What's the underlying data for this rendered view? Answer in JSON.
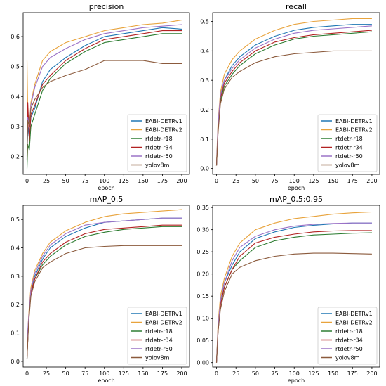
{
  "colors": {
    "EABI-DETRv1": "#1f77b4",
    "EABI-DETRv2": "#e8a33c",
    "rtdetr-r18": "#2e7d32",
    "rtdetr-r34": "#b22222",
    "rtdetr-r50": "#9b72c7",
    "yolov8m": "#8b5a3c"
  },
  "chart_data": [
    {
      "type": "line",
      "title": "precision",
      "xlabel": "epoch",
      "ylabel": "",
      "xlim": [
        -5,
        210
      ],
      "ylim": [
        0.14,
        0.68
      ],
      "xticks": [
        "0",
        "25",
        "50",
        "75",
        "100",
        "125",
        "150",
        "175",
        "200"
      ],
      "yticks": [
        "0.2",
        "0.3",
        "0.4",
        "0.5",
        "0.6"
      ],
      "legend_position": "lower-right",
      "grid": false,
      "series": [
        {
          "name": "EABI-DETRv1",
          "x": [
            0,
            1,
            3,
            5,
            10,
            20,
            30,
            50,
            75,
            100,
            125,
            150,
            175,
            200
          ],
          "y": [
            0.19,
            0.3,
            0.26,
            0.33,
            0.36,
            0.45,
            0.49,
            0.53,
            0.57,
            0.6,
            0.61,
            0.62,
            0.63,
            0.625
          ]
        },
        {
          "name": "EABI-DETRv2",
          "x": [
            0,
            1,
            3,
            5,
            10,
            20,
            30,
            50,
            75,
            100,
            125,
            150,
            175,
            200
          ],
          "y": [
            0.52,
            0.35,
            0.3,
            0.38,
            0.44,
            0.52,
            0.55,
            0.58,
            0.6,
            0.62,
            0.63,
            0.64,
            0.645,
            0.655
          ]
        },
        {
          "name": "rtdetr-r18",
          "x": [
            0,
            1,
            3,
            5,
            10,
            20,
            30,
            50,
            75,
            100,
            125,
            150,
            175,
            200
          ],
          "y": [
            0.16,
            0.24,
            0.22,
            0.3,
            0.34,
            0.42,
            0.46,
            0.51,
            0.55,
            0.58,
            0.59,
            0.6,
            0.61,
            0.61
          ]
        },
        {
          "name": "rtdetr-r34",
          "x": [
            0,
            1,
            3,
            5,
            10,
            20,
            30,
            50,
            75,
            100,
            125,
            150,
            175,
            200
          ],
          "y": [
            0.19,
            0.38,
            0.25,
            0.34,
            0.37,
            0.44,
            0.47,
            0.52,
            0.56,
            0.59,
            0.6,
            0.61,
            0.62,
            0.62
          ]
        },
        {
          "name": "rtdetr-r50",
          "x": [
            0,
            1,
            3,
            5,
            10,
            20,
            30,
            50,
            75,
            100,
            125,
            150,
            175,
            200
          ],
          "y": [
            0.22,
            0.33,
            0.3,
            0.37,
            0.43,
            0.5,
            0.53,
            0.56,
            0.59,
            0.61,
            0.62,
            0.63,
            0.635,
            0.64
          ]
        },
        {
          "name": "yolov8m",
          "x": [
            0,
            1,
            3,
            5,
            10,
            20,
            30,
            50,
            75,
            100,
            125,
            150,
            175,
            200
          ],
          "y": [
            0.2,
            0.32,
            0.3,
            0.36,
            0.39,
            0.43,
            0.45,
            0.47,
            0.49,
            0.52,
            0.52,
            0.52,
            0.51,
            0.51
          ]
        }
      ]
    },
    {
      "type": "line",
      "title": "recall",
      "xlabel": "epoch",
      "ylabel": "",
      "xlim": [
        -5,
        210
      ],
      "ylim": [
        -0.02,
        0.53
      ],
      "xticks": [
        "0",
        "25",
        "50",
        "75",
        "100",
        "125",
        "150",
        "175",
        "200"
      ],
      "yticks": [
        "0.0",
        "0.1",
        "0.2",
        "0.3",
        "0.4",
        "0.5"
      ],
      "legend_position": "lower-right",
      "grid": false,
      "series": [
        {
          "name": "EABI-DETRv1",
          "x": [
            0,
            2,
            5,
            10,
            20,
            30,
            50,
            75,
            100,
            125,
            150,
            175,
            200
          ],
          "y": [
            0.01,
            0.15,
            0.25,
            0.3,
            0.35,
            0.38,
            0.42,
            0.45,
            0.47,
            0.48,
            0.485,
            0.49,
            0.49
          ]
        },
        {
          "name": "EABI-DETRv2",
          "x": [
            0,
            2,
            5,
            10,
            20,
            30,
            50,
            75,
            100,
            125,
            150,
            175,
            200
          ],
          "y": [
            0.02,
            0.16,
            0.26,
            0.32,
            0.37,
            0.4,
            0.44,
            0.47,
            0.49,
            0.5,
            0.505,
            0.51,
            0.51
          ]
        },
        {
          "name": "rtdetr-r18",
          "x": [
            0,
            2,
            5,
            10,
            20,
            30,
            50,
            75,
            100,
            125,
            150,
            175,
            200
          ],
          "y": [
            0.01,
            0.13,
            0.23,
            0.28,
            0.32,
            0.35,
            0.39,
            0.42,
            0.44,
            0.45,
            0.455,
            0.46,
            0.465
          ]
        },
        {
          "name": "rtdetr-r34",
          "x": [
            0,
            2,
            5,
            10,
            20,
            30,
            50,
            75,
            100,
            125,
            150,
            175,
            200
          ],
          "y": [
            0.01,
            0.13,
            0.24,
            0.29,
            0.33,
            0.36,
            0.4,
            0.43,
            0.445,
            0.455,
            0.46,
            0.465,
            0.47
          ]
        },
        {
          "name": "rtdetr-r50",
          "x": [
            0,
            2,
            5,
            10,
            20,
            30,
            50,
            75,
            100,
            125,
            150,
            175,
            200
          ],
          "y": [
            0.01,
            0.15,
            0.25,
            0.3,
            0.34,
            0.37,
            0.41,
            0.44,
            0.46,
            0.47,
            0.475,
            0.48,
            0.485
          ]
        },
        {
          "name": "yolov8m",
          "x": [
            0,
            2,
            5,
            10,
            20,
            30,
            50,
            75,
            100,
            125,
            150,
            175,
            200
          ],
          "y": [
            0.01,
            0.12,
            0.22,
            0.27,
            0.31,
            0.33,
            0.36,
            0.38,
            0.39,
            0.395,
            0.4,
            0.4,
            0.4
          ]
        }
      ]
    },
    {
      "type": "line",
      "title": "mAP_0.5",
      "xlabel": "epoch",
      "ylabel": "",
      "xlim": [
        -5,
        210
      ],
      "ylim": [
        -0.02,
        0.55
      ],
      "xticks": [
        "0",
        "25",
        "50",
        "75",
        "100",
        "125",
        "150",
        "175",
        "200"
      ],
      "yticks": [
        "0.0",
        "0.1",
        "0.2",
        "0.3",
        "0.4",
        "0.5"
      ],
      "legend_position": "lower-right",
      "grid": false,
      "series": [
        {
          "name": "EABI-DETRv1",
          "x": [
            0,
            2,
            5,
            10,
            20,
            30,
            50,
            75,
            100,
            125,
            150,
            175,
            200
          ],
          "y": [
            0.01,
            0.15,
            0.25,
            0.3,
            0.36,
            0.4,
            0.44,
            0.47,
            0.49,
            0.495,
            0.5,
            0.505,
            0.505
          ]
        },
        {
          "name": "EABI-DETRv2",
          "x": [
            0,
            2,
            5,
            10,
            20,
            30,
            50,
            75,
            100,
            125,
            150,
            175,
            200
          ],
          "y": [
            0.02,
            0.16,
            0.26,
            0.32,
            0.38,
            0.42,
            0.46,
            0.49,
            0.51,
            0.52,
            0.525,
            0.53,
            0.535
          ]
        },
        {
          "name": "rtdetr-r18",
          "x": [
            0,
            2,
            5,
            10,
            20,
            30,
            50,
            75,
            100,
            125,
            150,
            175,
            200
          ],
          "y": [
            0.01,
            0.14,
            0.24,
            0.29,
            0.34,
            0.37,
            0.41,
            0.44,
            0.455,
            0.465,
            0.47,
            0.475,
            0.475
          ]
        },
        {
          "name": "rtdetr-r34",
          "x": [
            0,
            2,
            5,
            10,
            20,
            30,
            50,
            75,
            100,
            125,
            150,
            175,
            200
          ],
          "y": [
            0.01,
            0.14,
            0.24,
            0.29,
            0.35,
            0.38,
            0.42,
            0.45,
            0.465,
            0.47,
            0.475,
            0.48,
            0.48
          ]
        },
        {
          "name": "rtdetr-r50",
          "x": [
            0,
            2,
            5,
            10,
            20,
            30,
            50,
            75,
            100,
            125,
            150,
            175,
            200
          ],
          "y": [
            0.07,
            0.15,
            0.25,
            0.31,
            0.37,
            0.41,
            0.45,
            0.48,
            0.49,
            0.495,
            0.5,
            0.505,
            0.505
          ]
        },
        {
          "name": "yolov8m",
          "x": [
            0,
            2,
            5,
            10,
            20,
            30,
            50,
            75,
            100,
            125,
            150,
            175,
            200
          ],
          "y": [
            0.01,
            0.13,
            0.23,
            0.28,
            0.33,
            0.35,
            0.38,
            0.4,
            0.405,
            0.408,
            0.408,
            0.408,
            0.408
          ]
        }
      ]
    },
    {
      "type": "line",
      "title": "mAP_0.5:0.95",
      "xlabel": "epoch",
      "ylabel": "",
      "xlim": [
        -5,
        210
      ],
      "ylim": [
        -0.01,
        0.355
      ],
      "xticks": [
        "0",
        "25",
        "50",
        "75",
        "100",
        "125",
        "150",
        "175",
        "200"
      ],
      "yticks": [
        "0.00",
        "0.05",
        "0.10",
        "0.15",
        "0.20",
        "0.25",
        "0.30",
        "0.35"
      ],
      "legend_position": "lower-right",
      "grid": false,
      "series": [
        {
          "name": "EABI-DETRv1",
          "x": [
            0,
            2,
            5,
            10,
            20,
            30,
            50,
            75,
            100,
            125,
            150,
            175,
            200
          ],
          "y": [
            0.0,
            0.08,
            0.14,
            0.18,
            0.22,
            0.25,
            0.28,
            0.295,
            0.305,
            0.31,
            0.313,
            0.315,
            0.315
          ]
        },
        {
          "name": "EABI-DETRv2",
          "x": [
            0,
            2,
            5,
            10,
            20,
            30,
            50,
            75,
            100,
            125,
            150,
            175,
            200
          ],
          "y": [
            0.0,
            0.09,
            0.15,
            0.19,
            0.24,
            0.27,
            0.3,
            0.315,
            0.325,
            0.33,
            0.335,
            0.338,
            0.34
          ]
        },
        {
          "name": "rtdetr-r18",
          "x": [
            0,
            2,
            5,
            10,
            20,
            30,
            50,
            75,
            100,
            125,
            150,
            175,
            200
          ],
          "y": [
            0.0,
            0.07,
            0.13,
            0.17,
            0.21,
            0.23,
            0.26,
            0.275,
            0.283,
            0.288,
            0.29,
            0.292,
            0.293
          ]
        },
        {
          "name": "rtdetr-r34",
          "x": [
            0,
            2,
            5,
            10,
            20,
            30,
            50,
            75,
            100,
            125,
            150,
            175,
            200
          ],
          "y": [
            0.0,
            0.07,
            0.13,
            0.17,
            0.21,
            0.24,
            0.27,
            0.283,
            0.29,
            0.295,
            0.297,
            0.298,
            0.298
          ]
        },
        {
          "name": "rtdetr-r50",
          "x": [
            0,
            2,
            5,
            10,
            20,
            30,
            50,
            75,
            100,
            125,
            150,
            175,
            200
          ],
          "y": [
            0.0,
            0.08,
            0.14,
            0.18,
            0.23,
            0.26,
            0.285,
            0.3,
            0.308,
            0.312,
            0.314,
            0.315,
            0.315
          ]
        },
        {
          "name": "yolov8m",
          "x": [
            0,
            2,
            5,
            10,
            20,
            30,
            50,
            75,
            100,
            125,
            150,
            175,
            200
          ],
          "y": [
            0.0,
            0.07,
            0.12,
            0.16,
            0.2,
            0.215,
            0.23,
            0.24,
            0.245,
            0.247,
            0.247,
            0.246,
            0.245
          ]
        }
      ]
    }
  ]
}
